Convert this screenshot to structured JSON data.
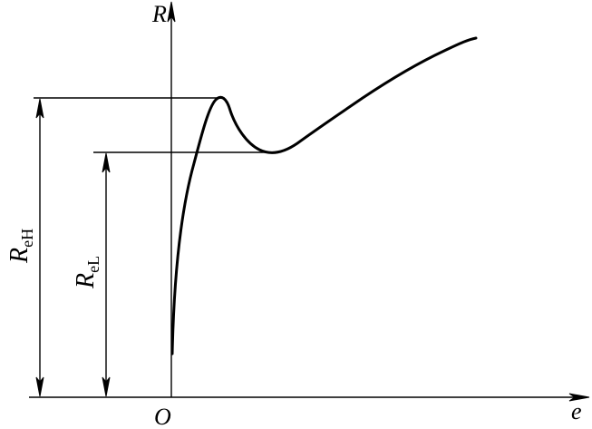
{
  "axes": {
    "y_label": "R",
    "x_label": "e",
    "origin_label": "O"
  },
  "annotations": {
    "upper": {
      "main": "R",
      "sub": "eH"
    },
    "lower": {
      "main": "R",
      "sub": "eL"
    }
  }
}
